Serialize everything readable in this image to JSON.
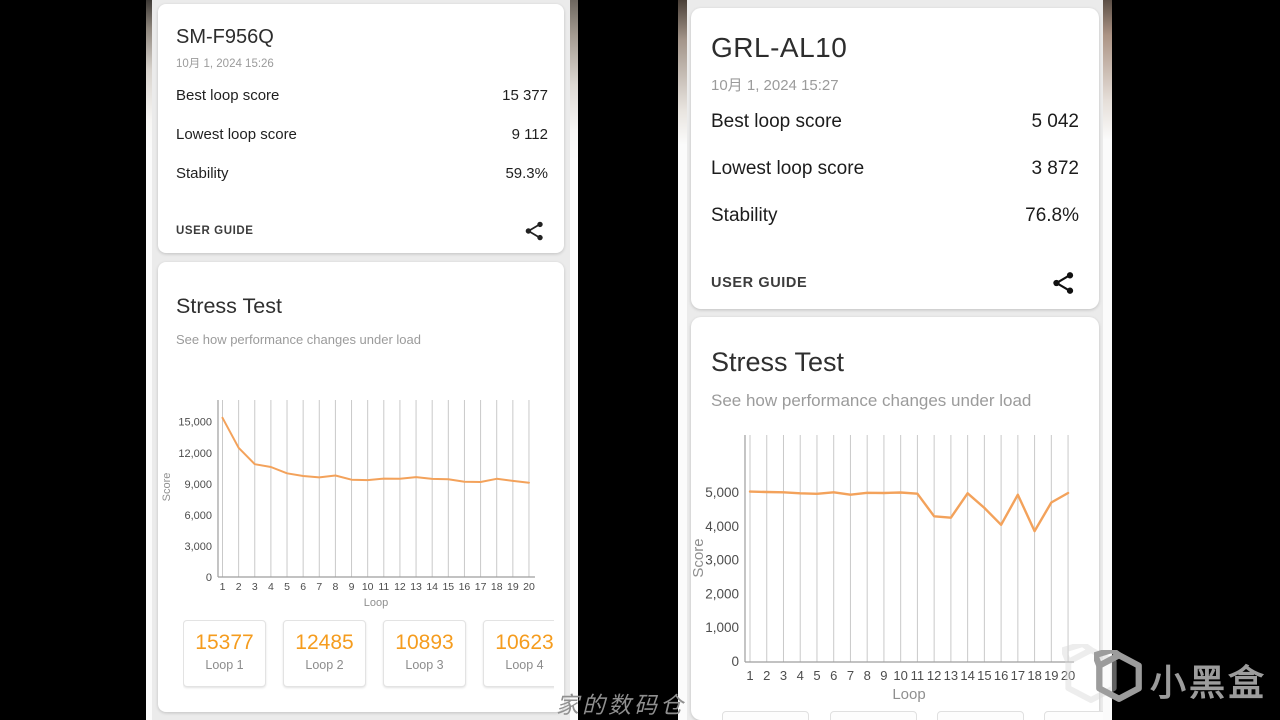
{
  "colors": {
    "accent_orange": "#f59c1e",
    "chart_line_orange": "#f3a25b",
    "card_background": "#ffffff",
    "panel_background": "#ebebeb",
    "page_background": "#000000"
  },
  "left_device": {
    "title": "SM-F956Q",
    "date": "10月 1, 2024 15:26",
    "rows": [
      {
        "label": "Best loop score",
        "value": "15 377"
      },
      {
        "label": "Lowest loop score",
        "value": "9 112"
      },
      {
        "label": "Stability",
        "value": "59.3%"
      }
    ],
    "user_guide": "USER GUIDE",
    "stress_title": "Stress Test",
    "stress_subtitle": "See how performance changes under load",
    "loop_cards": [
      {
        "score": "15377",
        "label": "Loop 1"
      },
      {
        "score": "12485",
        "label": "Loop 2"
      },
      {
        "score": "10893",
        "label": "Loop 3"
      },
      {
        "score": "10623",
        "label": "Loop 4"
      }
    ]
  },
  "right_device": {
    "title": "GRL-AL10",
    "date": "10月 1, 2024 15:27",
    "rows": [
      {
        "label": "Best loop score",
        "value": "5 042"
      },
      {
        "label": "Lowest loop score",
        "value": "3 872"
      },
      {
        "label": "Stability",
        "value": "76.8%"
      }
    ],
    "user_guide": "USER GUIDE",
    "stress_title": "Stress Test",
    "stress_subtitle": "See how performance changes under load",
    "partial_loop_cards_visible": 4
  },
  "watermarks": {
    "handwriting": "家的数码仓",
    "brand": "小黑盒",
    "brand_icon": "xiaoheihe-box-icon"
  },
  "chart_data": [
    {
      "type": "line",
      "device": "SM-F956Q",
      "title": "Stress Test",
      "xlabel": "Loop",
      "ylabel": "Score",
      "x": [
        1,
        2,
        3,
        4,
        5,
        6,
        7,
        8,
        9,
        10,
        11,
        12,
        13,
        14,
        15,
        16,
        17,
        18,
        19,
        20
      ],
      "values": [
        15377,
        12485,
        10893,
        10623,
        10020,
        9760,
        9620,
        9810,
        9400,
        9360,
        9510,
        9500,
        9650,
        9480,
        9440,
        9210,
        9180,
        9490,
        9280,
        9112
      ],
      "yticks": [
        0,
        3000,
        6000,
        9000,
        12000,
        15000
      ],
      "ylim": [
        0,
        17100
      ],
      "grid": "vertical",
      "legend": "none",
      "line_color": "#f3a25b"
    },
    {
      "type": "line",
      "device": "GRL-AL10",
      "title": "Stress Test",
      "xlabel": "Loop",
      "ylabel": "Score",
      "x": [
        1,
        2,
        3,
        4,
        5,
        6,
        7,
        8,
        9,
        10,
        11,
        12,
        13,
        14,
        15,
        16,
        17,
        18,
        19,
        20
      ],
      "values": [
        5042,
        5030,
        5020,
        4990,
        4975,
        5020,
        4950,
        5005,
        5000,
        5015,
        4980,
        4310,
        4270,
        4990,
        4560,
        4060,
        4950,
        3872,
        4720,
        5000
      ],
      "yticks": [
        0,
        1000,
        2000,
        3000,
        4000,
        5000
      ],
      "ylim": [
        0,
        6716
      ],
      "grid": "vertical",
      "legend": "none",
      "line_color": "#f3a25b"
    }
  ]
}
